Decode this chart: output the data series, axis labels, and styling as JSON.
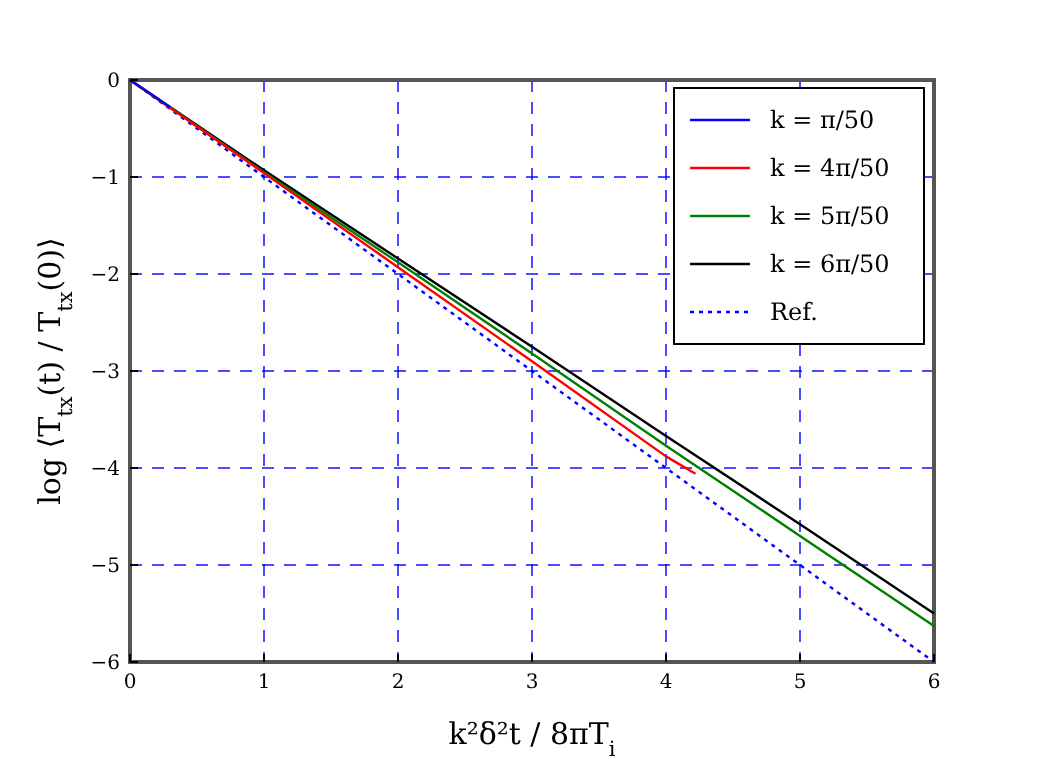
{
  "chart_data": {
    "type": "line",
    "xlabel": "k²δ²t / 8πT$_{i}$",
    "ylabel": "log ⟨T$_{tx}$(t) / T$_{tx}$(0)⟩",
    "xlim": [
      0,
      6
    ],
    "ylim": [
      -6,
      0
    ],
    "xticks": [
      0,
      1,
      2,
      3,
      4,
      5,
      6
    ],
    "yticks": [
      -6,
      -5,
      -4,
      -3,
      -2,
      -1,
      0
    ],
    "grid": true,
    "legend": "top right",
    "series": [
      {
        "name": "k = π/50",
        "color": "#0000ff",
        "x": [
          0,
          0.15,
          0.3
        ],
        "values": [
          0,
          -0.14,
          -0.28
        ]
      },
      {
        "name": "k = 4π/50",
        "color": "#ff0000",
        "x": [
          0,
          1,
          2,
          3,
          4,
          4.22
        ],
        "values": [
          0,
          -0.96,
          -1.93,
          -2.9,
          -3.88,
          -4.06
        ]
      },
      {
        "name": "k = 5π/50",
        "color": "#008000",
        "x": [
          0,
          1,
          2,
          3,
          4,
          5,
          6
        ],
        "values": [
          0,
          -0.95,
          -1.88,
          -2.82,
          -3.77,
          -4.7,
          -5.63
        ]
      },
      {
        "name": "k = 6π/50",
        "color": "#000000",
        "x": [
          0,
          1,
          2,
          3,
          4,
          5,
          6
        ],
        "values": [
          0,
          -0.93,
          -1.84,
          -2.75,
          -3.67,
          -4.58,
          -5.5
        ]
      },
      {
        "name": "Ref.",
        "color": "#0000ff",
        "line_style": "dotted",
        "x": [
          0,
          6
        ],
        "values": [
          0,
          -6
        ]
      }
    ]
  }
}
